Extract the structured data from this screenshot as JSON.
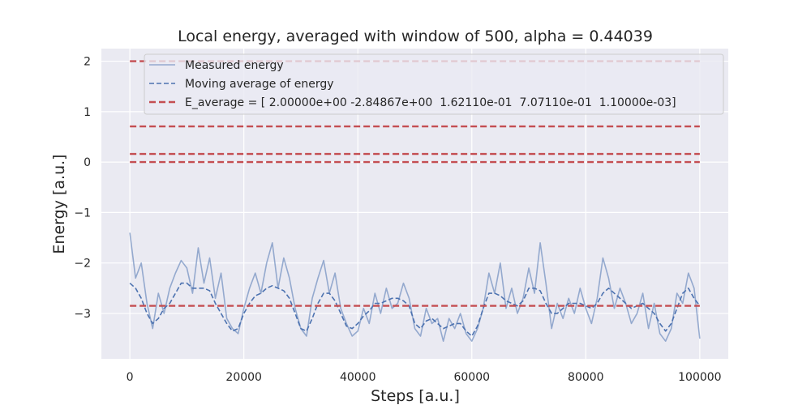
{
  "chart_data": {
    "type": "line",
    "title": "Local energy, averaged with window of 500, alpha = 0.44039",
    "xlabel": "Steps [a.u.]",
    "ylabel": "Energy [a.u.]",
    "xlim": [
      -5000,
      105000
    ],
    "ylim": [
      -3.9,
      2.25
    ],
    "x_ticks": [
      0,
      20000,
      40000,
      60000,
      80000,
      100000
    ],
    "x_tick_labels": [
      "0",
      "20000",
      "40000",
      "60000",
      "80000",
      "100000"
    ],
    "y_ticks": [
      2,
      1,
      0,
      -1,
      -2,
      -3
    ],
    "y_tick_labels": [
      "2",
      "1",
      "0",
      "−1",
      "−2",
      "−3"
    ],
    "grid": true,
    "legend_position": "top-right",
    "colors": {
      "background": "#eaeaf2",
      "grid": "#ffffff",
      "measured": "#4c72b0",
      "moving_average": "#4c72b0",
      "e_average": "#c44e52"
    },
    "series": [
      {
        "name": "Measured energy",
        "style": "solid",
        "x": [
          0,
          1000,
          2000,
          3000,
          4000,
          5000,
          6000,
          7000,
          8000,
          9000,
          10000,
          11000,
          12000,
          13000,
          14000,
          15000,
          16000,
          17000,
          18000,
          19000,
          20000,
          21000,
          22000,
          23000,
          24000,
          25000,
          26000,
          27000,
          28000,
          29000,
          30000,
          31000,
          32000,
          33000,
          34000,
          35000,
          36000,
          37000,
          38000,
          39000,
          40000,
          41000,
          42000,
          43000,
          44000,
          45000,
          46000,
          47000,
          48000,
          49000,
          50000,
          51000,
          52000,
          53000,
          54000,
          55000,
          56000,
          57000,
          58000,
          59000,
          60000,
          61000,
          62000,
          63000,
          64000,
          65000,
          66000,
          67000,
          68000,
          69000,
          70000,
          71000,
          72000,
          73000,
          74000,
          75000,
          76000,
          77000,
          78000,
          79000,
          80000,
          81000,
          82000,
          83000,
          84000,
          85000,
          86000,
          87000,
          88000,
          89000,
          90000,
          91000,
          92000,
          93000,
          94000,
          95000,
          96000,
          97000,
          98000,
          99000,
          100000
        ],
        "values": [
          -1.4,
          -2.3,
          -2.0,
          -2.8,
          -3.3,
          -2.6,
          -3.0,
          -2.5,
          -2.2,
          -1.95,
          -2.1,
          -2.6,
          -1.7,
          -2.4,
          -1.9,
          -2.7,
          -2.2,
          -3.1,
          -3.3,
          -3.4,
          -2.9,
          -2.5,
          -2.2,
          -2.6,
          -2.0,
          -1.6,
          -2.5,
          -1.9,
          -2.3,
          -2.9,
          -3.3,
          -3.45,
          -2.7,
          -2.3,
          -1.95,
          -2.6,
          -2.2,
          -2.9,
          -3.2,
          -3.45,
          -3.35,
          -2.9,
          -3.2,
          -2.6,
          -3.0,
          -2.5,
          -2.9,
          -2.8,
          -2.4,
          -2.7,
          -3.3,
          -3.45,
          -2.9,
          -3.2,
          -3.1,
          -3.55,
          -3.1,
          -3.3,
          -3.0,
          -3.4,
          -3.55,
          -3.3,
          -2.9,
          -2.2,
          -2.6,
          -2.0,
          -2.9,
          -2.5,
          -3.0,
          -2.7,
          -2.1,
          -2.6,
          -1.6,
          -2.4,
          -3.3,
          -2.8,
          -3.1,
          -2.7,
          -3.0,
          -2.5,
          -2.9,
          -3.2,
          -2.7,
          -1.9,
          -2.3,
          -2.9,
          -2.5,
          -2.8,
          -3.2,
          -3.0,
          -2.6,
          -3.3,
          -2.8,
          -3.4,
          -3.55,
          -3.3,
          -2.6,
          -2.8,
          -2.2,
          -2.5,
          -3.5
        ]
      },
      {
        "name": "Moving average of energy",
        "style": "dashed",
        "x": [
          0,
          1000,
          2000,
          3000,
          4000,
          5000,
          6000,
          7000,
          8000,
          9000,
          10000,
          11000,
          12000,
          13000,
          14000,
          15000,
          16000,
          17000,
          18000,
          19000,
          20000,
          21000,
          22000,
          23000,
          24000,
          25000,
          26000,
          27000,
          28000,
          29000,
          30000,
          31000,
          32000,
          33000,
          34000,
          35000,
          36000,
          37000,
          38000,
          39000,
          40000,
          41000,
          42000,
          43000,
          44000,
          45000,
          46000,
          47000,
          48000,
          49000,
          50000,
          51000,
          52000,
          53000,
          54000,
          55000,
          56000,
          57000,
          58000,
          59000,
          60000,
          61000,
          62000,
          63000,
          64000,
          65000,
          66000,
          67000,
          68000,
          69000,
          70000,
          71000,
          72000,
          73000,
          74000,
          75000,
          76000,
          77000,
          78000,
          79000,
          80000,
          81000,
          82000,
          83000,
          84000,
          85000,
          86000,
          87000,
          88000,
          89000,
          90000,
          91000,
          92000,
          93000,
          94000,
          95000,
          96000,
          97000,
          98000,
          99000,
          100000
        ],
        "values": [
          -2.4,
          -2.5,
          -2.7,
          -3.0,
          -3.2,
          -3.1,
          -2.9,
          -2.8,
          -2.6,
          -2.4,
          -2.4,
          -2.5,
          -2.5,
          -2.5,
          -2.55,
          -2.8,
          -3.0,
          -3.2,
          -3.35,
          -3.3,
          -3.0,
          -2.8,
          -2.65,
          -2.6,
          -2.5,
          -2.45,
          -2.5,
          -2.55,
          -2.7,
          -3.0,
          -3.3,
          -3.35,
          -3.1,
          -2.8,
          -2.6,
          -2.6,
          -2.75,
          -3.0,
          -3.25,
          -3.3,
          -3.2,
          -3.05,
          -2.95,
          -2.8,
          -2.8,
          -2.75,
          -2.7,
          -2.7,
          -2.75,
          -2.85,
          -3.2,
          -3.3,
          -3.15,
          -3.1,
          -3.2,
          -3.3,
          -3.25,
          -3.2,
          -3.2,
          -3.35,
          -3.45,
          -3.25,
          -2.9,
          -2.6,
          -2.6,
          -2.65,
          -2.75,
          -2.8,
          -2.85,
          -2.75,
          -2.5,
          -2.5,
          -2.55,
          -2.8,
          -3.0,
          -3.0,
          -2.9,
          -2.8,
          -2.8,
          -2.8,
          -2.85,
          -2.9,
          -2.8,
          -2.6,
          -2.5,
          -2.6,
          -2.7,
          -2.8,
          -2.9,
          -2.85,
          -2.8,
          -2.9,
          -3.0,
          -3.2,
          -3.35,
          -3.2,
          -2.9,
          -2.6,
          -2.5,
          -2.7,
          -2.85
        ]
      },
      {
        "name": "E_average = [ 2.00000e+00 -2.84867e+00  1.62110e-01  7.07110e-01  1.10000e-03]",
        "style": "dashed",
        "levels": [
          2.0,
          -2.84867,
          0.16211,
          0.70711,
          0.0011
        ],
        "x_range": [
          0,
          100000
        ]
      }
    ]
  }
}
